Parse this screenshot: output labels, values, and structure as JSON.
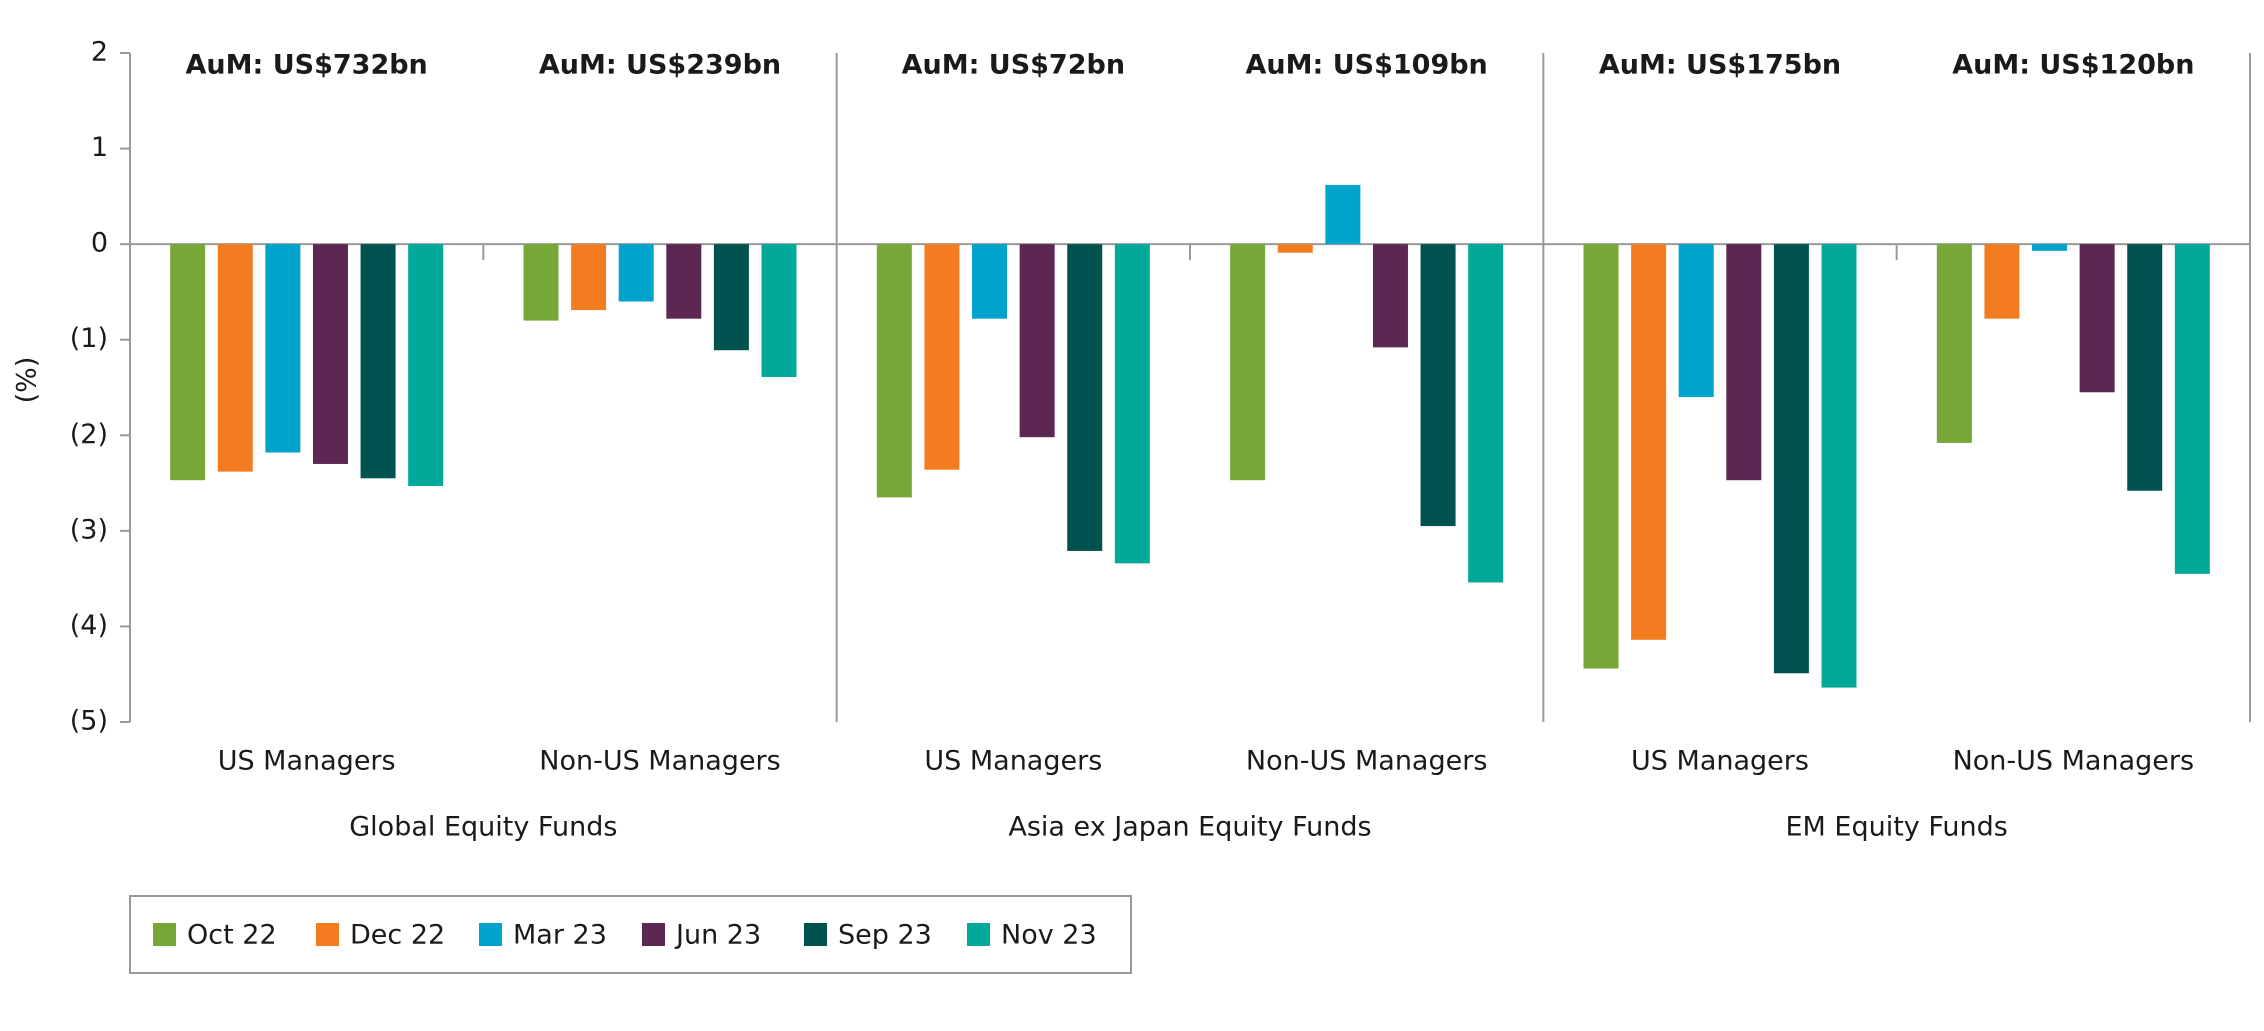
{
  "chart_data": {
    "type": "bar",
    "y_label": "(%)",
    "ylim": [
      -5,
      2
    ],
    "yticks": [
      2,
      1,
      0,
      {
        "value": -1,
        "label": "(1)"
      },
      {
        "value": -2,
        "label": "(2)"
      },
      {
        "value": -3,
        "label": "(3)"
      },
      {
        "value": -4,
        "label": "(4)"
      },
      {
        "value": -5,
        "label": "(5)"
      }
    ],
    "groups": [
      "Global Equity Funds",
      "Asia ex Japan Equity Funds",
      "EM Equity Funds"
    ],
    "categories": [
      "US Managers",
      "Non-US Managers",
      "US Managers",
      "Non-US Managers",
      "US Managers",
      "Non-US Managers"
    ],
    "annotations": [
      "AuM: US$732bn",
      "AuM: US$239bn",
      "AuM: US$72bn",
      "AuM: US$109bn",
      "AuM: US$175bn",
      "AuM: US$120bn"
    ],
    "series": [
      {
        "name": "Oct 22",
        "color": "#77a737",
        "values": [
          -2.47,
          -0.8,
          -2.65,
          -2.47,
          -4.44,
          -2.08
        ]
      },
      {
        "name": "Dec 22",
        "color": "#f47c20",
        "values": [
          -2.38,
          -0.69,
          -2.36,
          -0.09,
          -4.14,
          -0.78
        ]
      },
      {
        "name": "Mar 23",
        "color": "#00a3cc",
        "values": [
          -2.18,
          -0.6,
          -0.78,
          0.62,
          -1.6,
          -0.07
        ]
      },
      {
        "name": "Jun 23",
        "color": "#5c2751",
        "values": [
          -2.3,
          -0.78,
          -2.02,
          -1.08,
          -2.47,
          -1.55
        ]
      },
      {
        "name": "Sep 23",
        "color": "#00524f",
        "values": [
          -2.45,
          -1.11,
          -3.21,
          -2.95,
          -4.49,
          -2.58
        ]
      },
      {
        "name": "Nov 23",
        "color": "#00a99a",
        "values": [
          -2.53,
          -1.39,
          -3.34,
          -3.54,
          -4.64,
          -3.45
        ]
      }
    ]
  }
}
